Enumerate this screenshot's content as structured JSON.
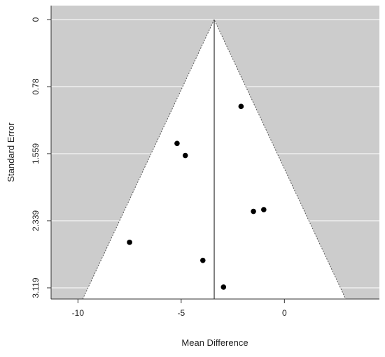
{
  "chart_data": {
    "type": "scatter",
    "title": "",
    "xlabel": "Mean Difference",
    "ylabel": "Standard Error",
    "xlim": [
      -11.3,
      4.6
    ],
    "ylim": [
      3.119,
      0
    ],
    "y_reversed": true,
    "x_ticks": [
      -10,
      -5,
      0
    ],
    "x_tick_labels": [
      "-10",
      "-5",
      "0"
    ],
    "y_ticks": [
      0,
      0.78,
      1.559,
      2.339,
      3.119
    ],
    "y_tick_labels": [
      "0",
      "0.78",
      "1.559",
      "2.339",
      "3.119"
    ],
    "summary_estimate": -3.4,
    "funnel_z": 1.96,
    "grid": "horizontal white lines at y ticks",
    "colors": {
      "outside": "#cccccc",
      "funnel": "#ffffff",
      "grid": "#ffffff",
      "points": "#000000"
    },
    "points": [
      {
        "x": -2.1,
        "y": 1.01
      },
      {
        "x": -5.2,
        "y": 1.44
      },
      {
        "x": -4.8,
        "y": 1.58
      },
      {
        "x": -1.5,
        "y": 2.23
      },
      {
        "x": -1.0,
        "y": 2.21
      },
      {
        "x": -7.5,
        "y": 2.59
      },
      {
        "x": -3.95,
        "y": 2.8
      },
      {
        "x": -2.95,
        "y": 3.11
      }
    ]
  }
}
